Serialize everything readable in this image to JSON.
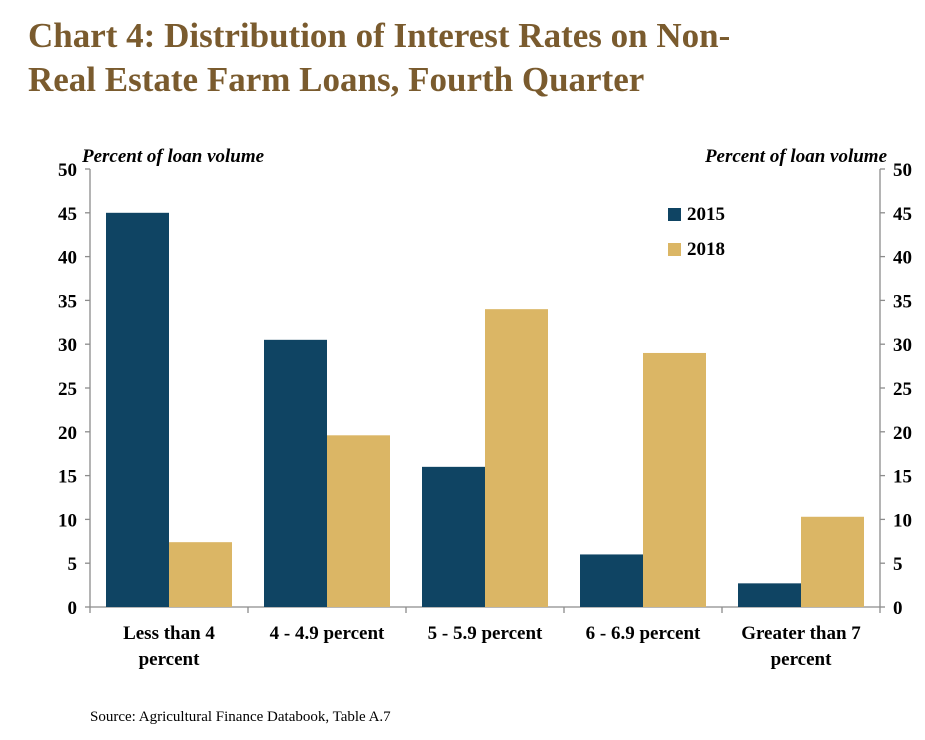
{
  "title_lines": [
    "Chart 4: Distribution of Interest Rates on Non-",
    "Real Estate Farm Loans, Fourth Quarter"
  ],
  "source": "Source: Agricultural Finance Databook, Table A.7",
  "colors": {
    "title": "#7a5b2e",
    "s2015": "#0f4463",
    "s2018": "#dbb665"
  },
  "chart_data": {
    "type": "bar",
    "categories": [
      [
        "Less than 4",
        "percent"
      ],
      [
        "4 - 4.9 percent"
      ],
      [
        "5 - 5.9 percent"
      ],
      [
        "6 - 6.9 percent"
      ],
      [
        "Greater than 7",
        "percent"
      ]
    ],
    "series": [
      {
        "name": "2015",
        "color": "#0f4463",
        "values": [
          45,
          30.5,
          16,
          6,
          2.7
        ]
      },
      {
        "name": "2018",
        "color": "#dbb665",
        "values": [
          7.4,
          19.6,
          34,
          29,
          10.3
        ]
      }
    ],
    "ylabel_left": "Percent of loan volume",
    "ylabel_right": "Percent of loan volume",
    "ylim": [
      0,
      50
    ],
    "yticks": [
      0,
      5,
      10,
      15,
      20,
      25,
      30,
      35,
      40,
      45,
      50
    ],
    "grid": false,
    "legend": "top-right"
  }
}
